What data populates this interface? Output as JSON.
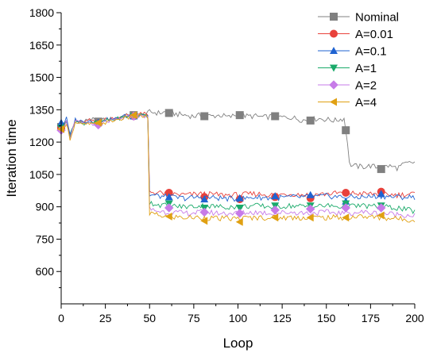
{
  "chart_data": {
    "type": "line",
    "xlabel": "Loop",
    "ylabel": "Iteration time",
    "xlim": [
      0,
      200
    ],
    "ylim": [
      450,
      1800
    ],
    "xticks": [
      0,
      25,
      50,
      75,
      100,
      125,
      150,
      175,
      200
    ],
    "yticks": [
      600,
      750,
      900,
      1050,
      1200,
      1350,
      1500,
      1650,
      1800
    ],
    "grid": false,
    "legend_position": "top-right",
    "series": [
      {
        "name": "Nominal",
        "color": "#808080",
        "marker": "square",
        "points": [
          [
            0,
            1270
          ],
          [
            3,
            1300
          ],
          [
            5,
            1230
          ],
          [
            8,
            1300
          ],
          [
            12,
            1290
          ],
          [
            16,
            1310
          ],
          [
            20,
            1300
          ],
          [
            25,
            1305
          ],
          [
            30,
            1310
          ],
          [
            35,
            1320
          ],
          [
            40,
            1330
          ],
          [
            45,
            1325
          ],
          [
            48,
            1330
          ],
          [
            50,
            1340
          ],
          [
            55,
            1335
          ],
          [
            60,
            1340
          ],
          [
            65,
            1330
          ],
          [
            70,
            1325
          ],
          [
            75,
            1320
          ],
          [
            80,
            1325
          ],
          [
            85,
            1320
          ],
          [
            90,
            1325
          ],
          [
            95,
            1315
          ],
          [
            100,
            1330
          ],
          [
            105,
            1320
          ],
          [
            110,
            1320
          ],
          [
            115,
            1315
          ],
          [
            120,
            1320
          ],
          [
            125,
            1315
          ],
          [
            130,
            1315
          ],
          [
            135,
            1305
          ],
          [
            140,
            1300
          ],
          [
            145,
            1310
          ],
          [
            150,
            1305
          ],
          [
            155,
            1300
          ],
          [
            160,
            1310
          ],
          [
            162,
            1200
          ],
          [
            163,
            1100
          ],
          [
            165,
            1090
          ],
          [
            170,
            1085
          ],
          [
            175,
            1090
          ],
          [
            180,
            1080
          ],
          [
            185,
            1090
          ],
          [
            190,
            1080
          ],
          [
            195,
            1100
          ],
          [
            199,
            1105
          ]
        ],
        "markers": [
          [
            0,
            1270
          ],
          [
            21,
            1295
          ],
          [
            41,
            1325
          ],
          [
            61,
            1335
          ],
          [
            81,
            1320
          ],
          [
            101,
            1325
          ],
          [
            121,
            1320
          ],
          [
            141,
            1300
          ],
          [
            161,
            1255
          ],
          [
            181,
            1075
          ]
        ]
      },
      {
        "name": "A=0.01",
        "color": "#e8413b",
        "marker": "circle",
        "points": [
          [
            0,
            1265
          ],
          [
            3,
            1300
          ],
          [
            5,
            1230
          ],
          [
            8,
            1300
          ],
          [
            12,
            1290
          ],
          [
            16,
            1300
          ],
          [
            20,
            1290
          ],
          [
            25,
            1305
          ],
          [
            30,
            1310
          ],
          [
            35,
            1320
          ],
          [
            40,
            1330
          ],
          [
            45,
            1330
          ],
          [
            48,
            1330
          ],
          [
            49,
            1320
          ],
          [
            50,
            970
          ],
          [
            55,
            965
          ],
          [
            60,
            960
          ],
          [
            70,
            955
          ],
          [
            80,
            960
          ],
          [
            90,
            955
          ],
          [
            100,
            955
          ],
          [
            110,
            960
          ],
          [
            120,
            955
          ],
          [
            130,
            960
          ],
          [
            140,
            955
          ],
          [
            150,
            960
          ],
          [
            160,
            965
          ],
          [
            170,
            960
          ],
          [
            180,
            960
          ],
          [
            190,
            955
          ],
          [
            199,
            960
          ]
        ],
        "markers": [
          [
            0,
            1265
          ],
          [
            21,
            1285
          ],
          [
            41,
            1320
          ],
          [
            61,
            965
          ],
          [
            81,
            945
          ],
          [
            101,
            935
          ],
          [
            121,
            945
          ],
          [
            141,
            940
          ],
          [
            161,
            965
          ],
          [
            181,
            970
          ]
        ]
      },
      {
        "name": "A=0.1",
        "color": "#1f63d1",
        "marker": "triangle-up",
        "points": [
          [
            0,
            1270
          ],
          [
            3,
            1310
          ],
          [
            5,
            1230
          ],
          [
            8,
            1305
          ],
          [
            12,
            1295
          ],
          [
            16,
            1300
          ],
          [
            20,
            1290
          ],
          [
            25,
            1305
          ],
          [
            30,
            1305
          ],
          [
            35,
            1320
          ],
          [
            40,
            1325
          ],
          [
            45,
            1330
          ],
          [
            48,
            1330
          ],
          [
            49,
            1320
          ],
          [
            50,
            955
          ],
          [
            55,
            950
          ],
          [
            60,
            945
          ],
          [
            70,
            940
          ],
          [
            80,
            945
          ],
          [
            90,
            940
          ],
          [
            100,
            935
          ],
          [
            110,
            945
          ],
          [
            120,
            940
          ],
          [
            130,
            945
          ],
          [
            140,
            945
          ],
          [
            150,
            950
          ],
          [
            160,
            945
          ],
          [
            170,
            945
          ],
          [
            180,
            950
          ],
          [
            190,
            945
          ],
          [
            199,
            945
          ]
        ],
        "markers": [
          [
            0,
            1290
          ],
          [
            21,
            1290
          ],
          [
            41,
            1320
          ],
          [
            61,
            945
          ],
          [
            81,
            935
          ],
          [
            101,
            940
          ],
          [
            121,
            950
          ],
          [
            141,
            955
          ],
          [
            161,
            925
          ],
          [
            181,
            960
          ]
        ]
      },
      {
        "name": "A=1",
        "color": "#1aaa6a",
        "marker": "triangle-down",
        "points": [
          [
            0,
            1260
          ],
          [
            3,
            1300
          ],
          [
            5,
            1225
          ],
          [
            8,
            1300
          ],
          [
            12,
            1285
          ],
          [
            16,
            1295
          ],
          [
            20,
            1285
          ],
          [
            25,
            1300
          ],
          [
            30,
            1305
          ],
          [
            35,
            1315
          ],
          [
            40,
            1320
          ],
          [
            45,
            1325
          ],
          [
            48,
            1325
          ],
          [
            49,
            1315
          ],
          [
            50,
            920
          ],
          [
            55,
            910
          ],
          [
            60,
            905
          ],
          [
            70,
            900
          ],
          [
            80,
            905
          ],
          [
            90,
            900
          ],
          [
            100,
            900
          ],
          [
            110,
            905
          ],
          [
            120,
            900
          ],
          [
            130,
            905
          ],
          [
            140,
            900
          ],
          [
            150,
            905
          ],
          [
            160,
            900
          ],
          [
            170,
            905
          ],
          [
            180,
            900
          ],
          [
            190,
            895
          ],
          [
            199,
            880
          ]
        ],
        "markers": [
          [
            0,
            1265
          ],
          [
            21,
            1285
          ],
          [
            41,
            1320
          ],
          [
            61,
            915
          ],
          [
            81,
            895
          ],
          [
            101,
            895
          ],
          [
            121,
            905
          ],
          [
            141,
            905
          ],
          [
            161,
            915
          ],
          [
            181,
            905
          ]
        ]
      },
      {
        "name": "A=2",
        "color": "#c77be8",
        "marker": "diamond",
        "points": [
          [
            0,
            1255
          ],
          [
            3,
            1295
          ],
          [
            5,
            1220
          ],
          [
            8,
            1295
          ],
          [
            12,
            1285
          ],
          [
            16,
            1290
          ],
          [
            20,
            1280
          ],
          [
            25,
            1295
          ],
          [
            30,
            1300
          ],
          [
            35,
            1310
          ],
          [
            40,
            1320
          ],
          [
            45,
            1320
          ],
          [
            48,
            1320
          ],
          [
            49,
            1310
          ],
          [
            50,
            890
          ],
          [
            55,
            880
          ],
          [
            60,
            875
          ],
          [
            70,
            870
          ],
          [
            80,
            875
          ],
          [
            90,
            870
          ],
          [
            100,
            870
          ],
          [
            110,
            875
          ],
          [
            120,
            870
          ],
          [
            130,
            875
          ],
          [
            140,
            870
          ],
          [
            150,
            875
          ],
          [
            160,
            870
          ],
          [
            170,
            875
          ],
          [
            180,
            870
          ],
          [
            190,
            865
          ],
          [
            199,
            860
          ]
        ],
        "markers": [
          [
            0,
            1255
          ],
          [
            21,
            1280
          ],
          [
            41,
            1320
          ],
          [
            61,
            895
          ],
          [
            81,
            875
          ],
          [
            101,
            870
          ],
          [
            121,
            885
          ],
          [
            141,
            890
          ],
          [
            161,
            895
          ],
          [
            181,
            895
          ]
        ]
      },
      {
        "name": "A=4",
        "color": "#e0a012",
        "marker": "triangle-left",
        "points": [
          [
            0,
            1250
          ],
          [
            3,
            1290
          ],
          [
            5,
            1215
          ],
          [
            8,
            1290
          ],
          [
            12,
            1280
          ],
          [
            16,
            1285
          ],
          [
            20,
            1280
          ],
          [
            25,
            1290
          ],
          [
            30,
            1300
          ],
          [
            35,
            1310
          ],
          [
            40,
            1315
          ],
          [
            45,
            1320
          ],
          [
            48,
            1320
          ],
          [
            49,
            1310
          ],
          [
            50,
            870
          ],
          [
            55,
            860
          ],
          [
            60,
            855
          ],
          [
            70,
            850
          ],
          [
            80,
            850
          ],
          [
            90,
            845
          ],
          [
            100,
            845
          ],
          [
            110,
            850
          ],
          [
            120,
            850
          ],
          [
            130,
            850
          ],
          [
            140,
            850
          ],
          [
            150,
            850
          ],
          [
            160,
            850
          ],
          [
            170,
            855
          ],
          [
            180,
            850
          ],
          [
            190,
            845
          ],
          [
            199,
            840
          ]
        ],
        "markers": [
          [
            0,
            1260
          ],
          [
            21,
            1290
          ],
          [
            41,
            1325
          ],
          [
            61,
            855
          ],
          [
            81,
            835
          ],
          [
            101,
            830
          ],
          [
            121,
            850
          ],
          [
            141,
            850
          ],
          [
            161,
            850
          ],
          [
            181,
            860
          ]
        ]
      }
    ]
  }
}
